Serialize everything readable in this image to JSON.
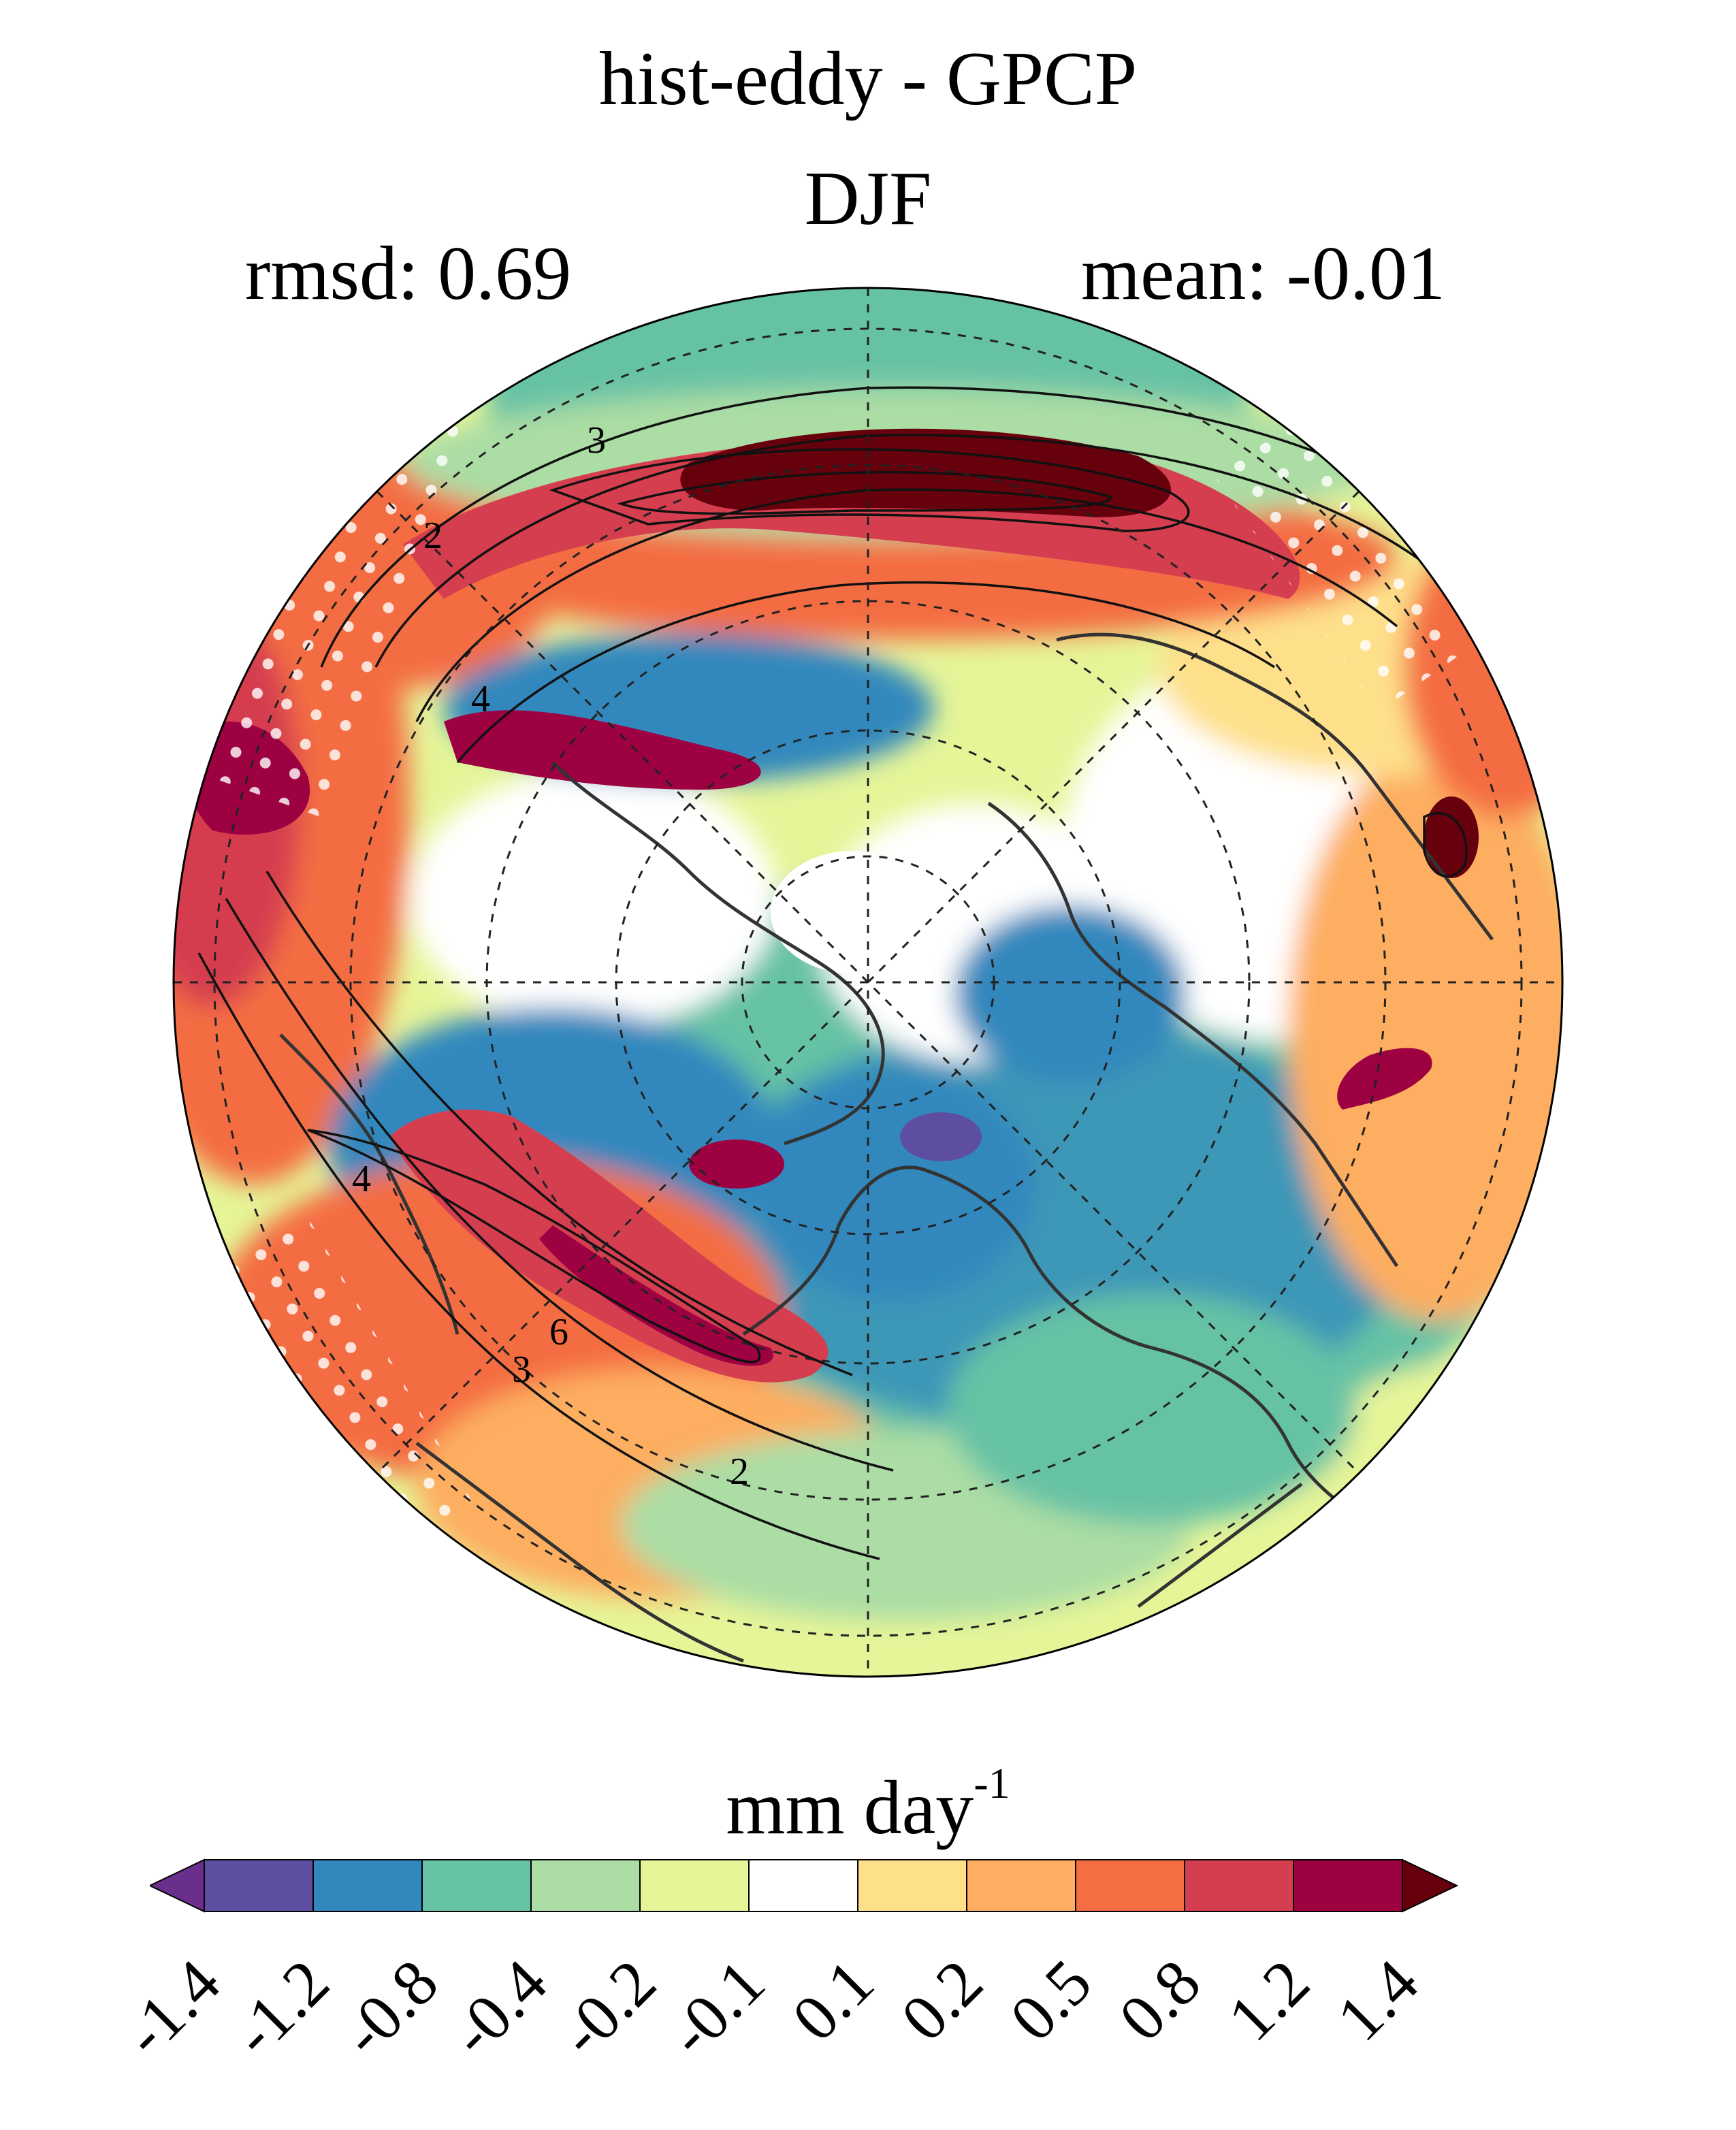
{
  "figure": {
    "title": "hist-eddy - GPCP",
    "season": "DJF",
    "rmsd_label": "rmsd: 0.69",
    "mean_label": "mean: -0.01"
  },
  "map": {
    "projection": "north polar stereographic",
    "field": "precipitation difference",
    "contour_labels": [
      "3",
      "2",
      "4",
      "4",
      "6",
      "3",
      "2"
    ],
    "stippling": "white dots"
  },
  "colorbar": {
    "units_text": "mm day",
    "units_exponent": "-1",
    "levels": [
      "-1.4",
      "-1.2",
      "-0.8",
      "-0.4",
      "-0.2",
      "-0.1",
      "0.1",
      "0.2",
      "0.5",
      "0.8",
      "1.2",
      "1.4"
    ],
    "colors": [
      "#6a2f8c",
      "#5d4ea2",
      "#3288bd",
      "#66c2a5",
      "#abdda4",
      "#e6f598",
      "#ffffff",
      "#fee08b",
      "#fdae61",
      "#f46d43",
      "#d53e4f",
      "#9e0142",
      "#67000d"
    ]
  }
}
